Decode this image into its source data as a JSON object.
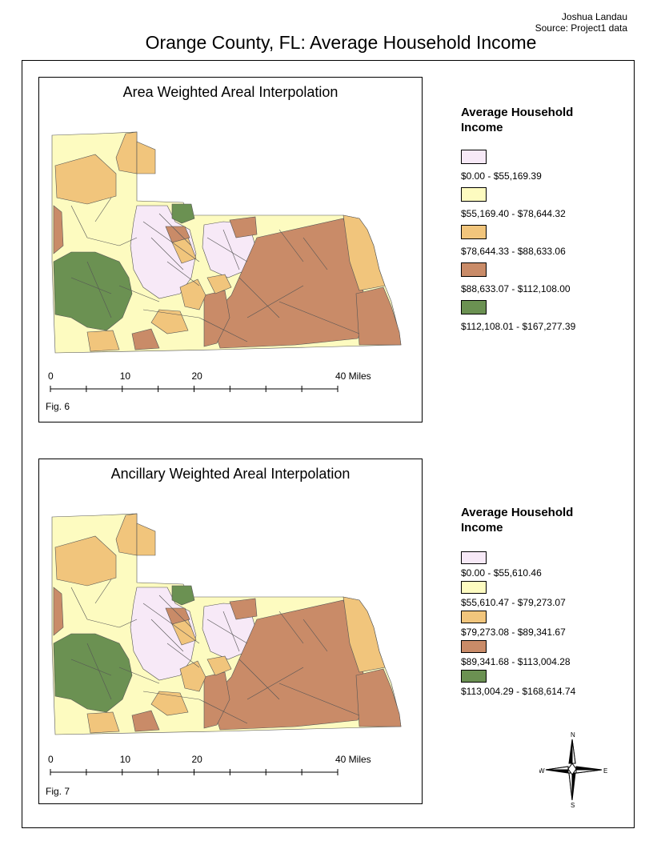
{
  "header": {
    "author": "Joshua Landau",
    "source": "Source: Project1 data",
    "title": "Orange County, FL: Average Household Income"
  },
  "maps": [
    {
      "title": "Area Weighted Areal Interpolation",
      "figure": "Fig. 6",
      "scale_bar": {
        "ticks": [
          "0",
          "10",
          "20",
          "40 Miles"
        ]
      },
      "legend": {
        "title": "Average Household Income",
        "classes": [
          {
            "label": "$0.00 - $55,169.39",
            "color": "#f7e9f7"
          },
          {
            "label": "$55,169.40 - $78,644.32",
            "color": "#fdfbc0"
          },
          {
            "label": "$78,644.33 - $88,633.06",
            "color": "#f1c57c"
          },
          {
            "label": "$88,633.07 - $112,108.00",
            "color": "#c98b68"
          },
          {
            "label": "$112,108.01 - $167,277.39",
            "color": "#6b9152"
          }
        ]
      }
    },
    {
      "title": "Ancillary Weighted Areal Interpolation",
      "figure": "Fig. 7",
      "scale_bar": {
        "ticks": [
          "0",
          "10",
          "20",
          "40 Miles"
        ]
      },
      "legend": {
        "title": "Average Household Income",
        "classes": [
          {
            "label": "$0.00 - $55,610.46",
            "color": "#f7e9f7"
          },
          {
            "label": "$55,610.47 - $79,273.07",
            "color": "#fdfbc0"
          },
          {
            "label": "$79,273.08 - $89,341.67",
            "color": "#f1c57c"
          },
          {
            "label": "$89,341.68 - $113,004.28",
            "color": "#c98b68"
          },
          {
            "label": "$113,004.29 - $168,614.74",
            "color": "#6b9152"
          }
        ]
      }
    }
  ],
  "compass": {
    "n": "N",
    "s": "S",
    "e": "E",
    "w": "W"
  }
}
